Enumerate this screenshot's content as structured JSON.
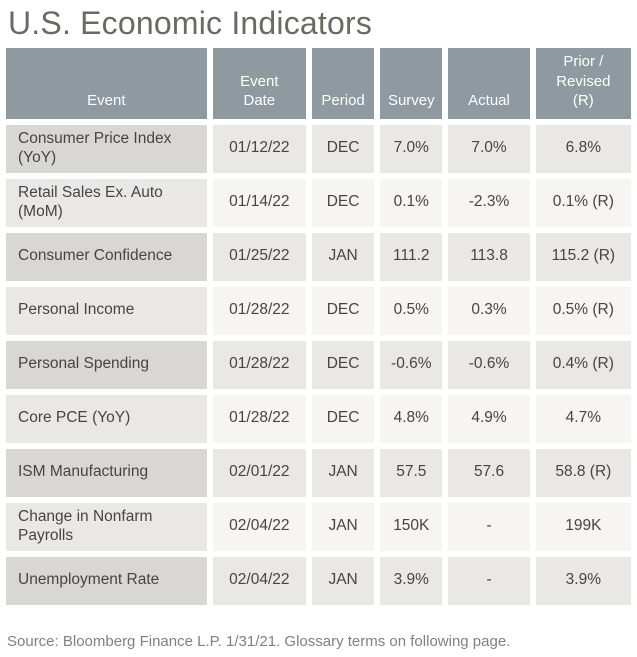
{
  "title": "U.S. Economic Indicators",
  "table": {
    "columns": [
      {
        "key": "event",
        "label": "Event"
      },
      {
        "key": "date",
        "label": "Event Date"
      },
      {
        "key": "period",
        "label": "Period"
      },
      {
        "key": "survey",
        "label": "Survey"
      },
      {
        "key": "actual",
        "label": "Actual"
      },
      {
        "key": "prior",
        "label": "Prior / Revised (R)"
      }
    ],
    "rows": [
      {
        "event": "Consumer Price Index (YoY)",
        "date": "01/12/22",
        "period": "DEC",
        "survey": "7.0%",
        "actual": "7.0%",
        "prior": "6.8%"
      },
      {
        "event": "Retail Sales Ex. Auto (MoM)",
        "date": "01/14/22",
        "period": "DEC",
        "survey": "0.1%",
        "actual": "-2.3%",
        "prior": "0.1% (R)"
      },
      {
        "event": "Consumer Confidence",
        "date": "01/25/22",
        "period": "JAN",
        "survey": "111.2",
        "actual": "113.8",
        "prior": "115.2 (R)"
      },
      {
        "event": "Personal Income",
        "date": "01/28/22",
        "period": "DEC",
        "survey": "0.5%",
        "actual": "0.3%",
        "prior": "0.5% (R)"
      },
      {
        "event": "Personal Spending",
        "date": "01/28/22",
        "period": "DEC",
        "survey": "-0.6%",
        "actual": "-0.6%",
        "prior": "0.4% (R)"
      },
      {
        "event": "Core PCE (YoY)",
        "date": "01/28/22",
        "period": "DEC",
        "survey": "4.8%",
        "actual": "4.9%",
        "prior": "4.7%"
      },
      {
        "event": "ISM Manufacturing",
        "date": "02/01/22",
        "period": "JAN",
        "survey": "57.5",
        "actual": "57.6",
        "prior": "58.8 (R)"
      },
      {
        "event": "Change in Nonfarm Payrolls",
        "date": "02/04/22",
        "period": "JAN",
        "survey": "150K",
        "actual": "-",
        "prior": "199K"
      },
      {
        "event": "Unemployment Rate",
        "date": "02/04/22",
        "period": "JAN",
        "survey": "3.9%",
        "actual": "-",
        "prior": "3.9%"
      }
    ]
  },
  "footer": {
    "source_note": "Source: Bloomberg Finance L.P. 1/31/21. Glossary terms on following page."
  },
  "colors": {
    "header_bg": "#8F99A0",
    "header_text": "#FFFFFF",
    "row_odd_event_bg": "#D8D7D5",
    "row_odd_data_bg": "#E9E8E6",
    "row_even_event_bg": "#E9E8E6",
    "row_even_data_bg": "#F6F5F3",
    "cell_text": "#454541",
    "title_text": "#6A6A64",
    "footer_text": "#7F8083"
  }
}
